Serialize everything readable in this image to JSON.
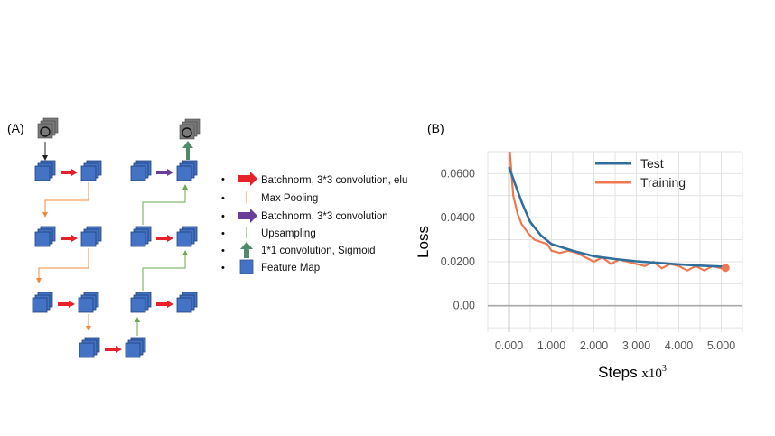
{
  "panel_a": {
    "label": "(A)",
    "legend": [
      {
        "text": "Batchnorm, 3*3 convolution, elu",
        "icon": "red-arrow"
      },
      {
        "text": "Max Pooling",
        "icon": "orange-thin-arrow"
      },
      {
        "text": "Batchnorm, 3*3 convolution",
        "icon": "purple-arrow"
      },
      {
        "text": "Upsampling",
        "icon": "green-thin-arrow"
      },
      {
        "text": "1*1 convolution, Sigmoid",
        "icon": "green-thick-arrow"
      },
      {
        "text": "Feature Map",
        "icon": "blue-square"
      }
    ],
    "bullet": "•",
    "colors": {
      "conv": "#e8202a",
      "pool": "#f0883c",
      "conv2": "#6a3d9a",
      "up": "#6aaa4c",
      "sigmoid": "#4f8a6a",
      "feature": "#4472c4"
    }
  },
  "panel_b": {
    "label": "(B)",
    "chart_data": {
      "type": "line",
      "xlabel": "Steps",
      "xlabel_unit": "x10",
      "xlabel_exp": "3",
      "ylabel": "Loss",
      "xlim": [
        -0.5,
        5.5
      ],
      "ylim": [
        -0.012,
        0.07
      ],
      "x_ticks": [
        0.0,
        1.0,
        2.0,
        3.0,
        4.0,
        5.0
      ],
      "x_tick_labels": [
        "0.000",
        "1.000",
        "2.000",
        "3.000",
        "4.000",
        "5.000"
      ],
      "y_ticks": [
        0.0,
        0.02,
        0.04,
        0.06
      ],
      "y_tick_labels": [
        "0.00",
        "0.0200",
        "0.0400",
        "0.0600"
      ],
      "grid": true,
      "legend_position": "top-right",
      "series": [
        {
          "name": "Test",
          "color": "#2e6f9e",
          "x": [
            0.0,
            0.15,
            0.3,
            0.5,
            0.75,
            1.0,
            1.5,
            2.0,
            2.5,
            3.0,
            3.5,
            4.0,
            4.5,
            5.0,
            5.1
          ],
          "y": [
            0.063,
            0.055,
            0.047,
            0.038,
            0.032,
            0.028,
            0.025,
            0.0225,
            0.0212,
            0.0202,
            0.0195,
            0.0188,
            0.0182,
            0.0178,
            0.0177
          ]
        },
        {
          "name": "Training",
          "color": "#f07850",
          "x": [
            0.0,
            0.1,
            0.2,
            0.3,
            0.45,
            0.6,
            0.75,
            0.9,
            1.0,
            1.2,
            1.4,
            1.6,
            1.8,
            2.0,
            2.2,
            2.4,
            2.6,
            2.8,
            3.0,
            3.2,
            3.4,
            3.6,
            3.8,
            4.0,
            4.2,
            4.4,
            4.6,
            4.8,
            5.0,
            5.1
          ],
          "y": [
            0.075,
            0.05,
            0.042,
            0.037,
            0.033,
            0.03,
            0.029,
            0.028,
            0.025,
            0.024,
            0.025,
            0.024,
            0.022,
            0.02,
            0.022,
            0.019,
            0.021,
            0.02,
            0.019,
            0.018,
            0.02,
            0.017,
            0.019,
            0.018,
            0.016,
            0.018,
            0.016,
            0.018,
            0.017,
            0.0172
          ]
        }
      ]
    }
  }
}
